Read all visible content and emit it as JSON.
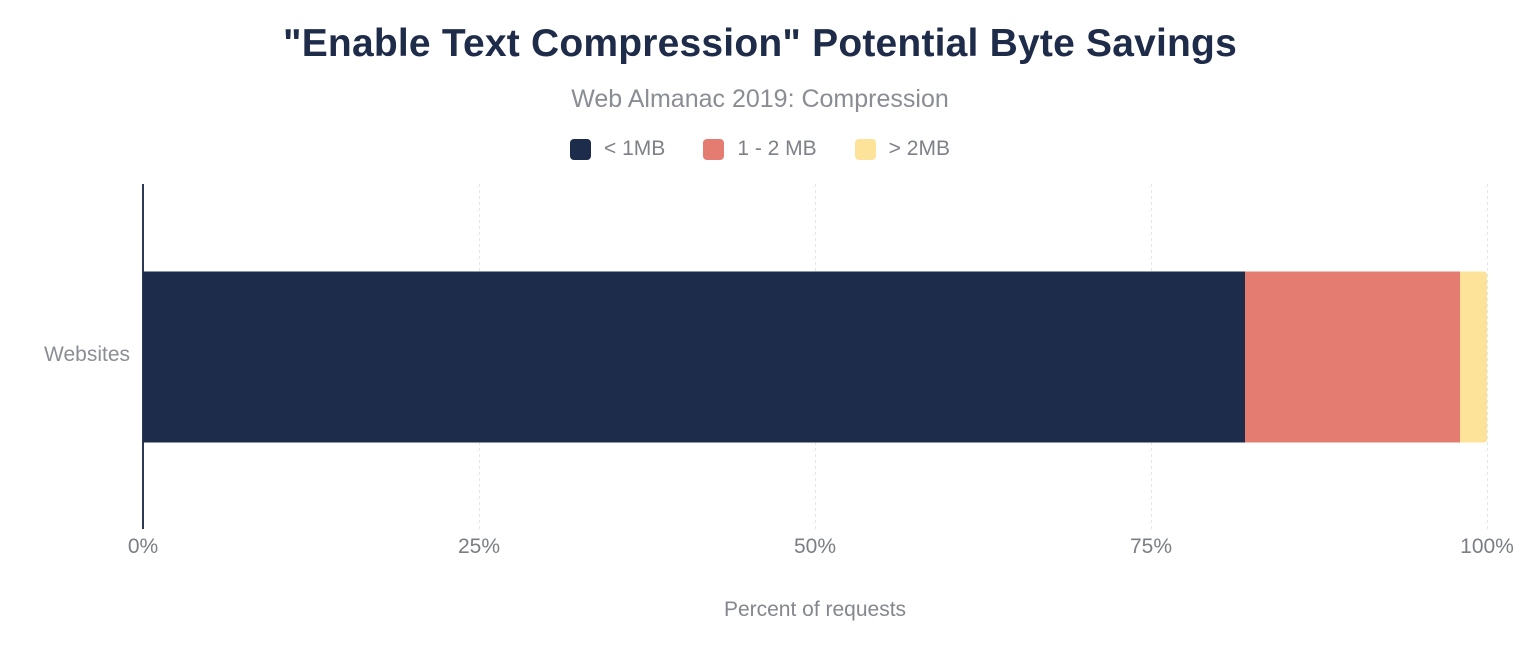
{
  "chart": {
    "title": "\"Enable Text Compression\" Potential Byte Savings",
    "subtitle": "Web Almanac 2019: Compression",
    "category_label": "Websites",
    "x_axis_title": "Percent of requests"
  },
  "chart_data": {
    "type": "bar",
    "orientation": "horizontal",
    "stacked": true,
    "title": "\"Enable Text Compression\" Potential Byte Savings",
    "subtitle": "Web Almanac 2019: Compression",
    "categories": [
      "Websites"
    ],
    "series": [
      {
        "name": "< 1MB",
        "values": [
          82
        ],
        "color": "#1E2C4C"
      },
      {
        "name": "1 - 2 MB",
        "values": [
          16
        ],
        "color": "#E57C72"
      },
      {
        "name": "> 2MB",
        "values": [
          2
        ],
        "color": "#FDE39A"
      }
    ],
    "xlabel": "Percent of requests",
    "ylabel": "",
    "xlim": [
      0,
      100
    ],
    "x_ticks": [
      {
        "label": "0%",
        "value": 0
      },
      {
        "label": "25%",
        "value": 25
      },
      {
        "label": "50%",
        "value": 50
      },
      {
        "label": "75%",
        "value": 75
      },
      {
        "label": "100%",
        "value": 100
      }
    ],
    "grid": "vertical-dashed",
    "legend_position": "top"
  },
  "colors": {
    "title_text": "#1E2B49",
    "subtitle_text": "#8A8D93",
    "axis_text": "#7B7E85",
    "axis_line": "#2A3A55",
    "gridline": "#E4E5E8",
    "background": "#FFFFFF"
  }
}
